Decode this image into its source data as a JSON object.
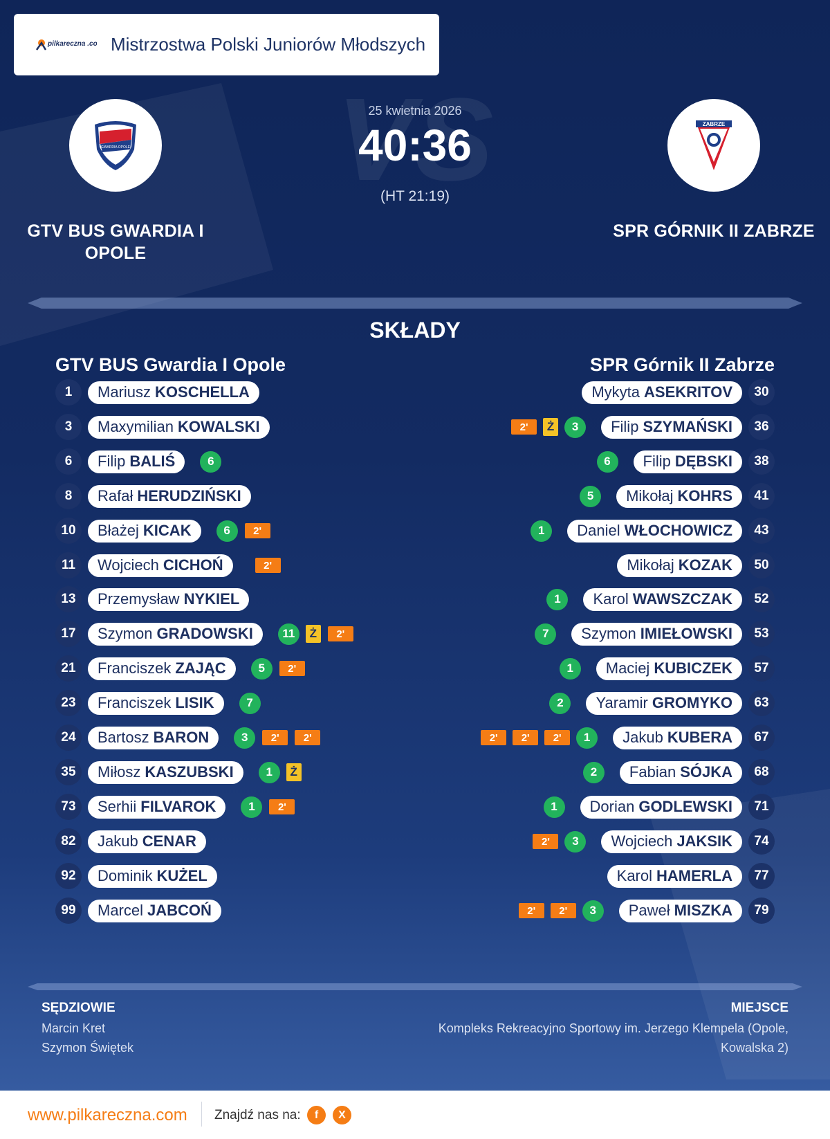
{
  "header": {
    "brand_logo_text": "pilkareczna .com",
    "competition": "Mistrzostwa Polski Juniorów Młodszych"
  },
  "match": {
    "date": "25 kwietnia 2026",
    "score": "40:36",
    "halftime": "(HT 21:19)",
    "vs_watermark": "VS",
    "home": {
      "name": "GTV BUS GWARDIA I OPOLE",
      "crest_text": "GWARDIA OPOLE"
    },
    "away": {
      "name": "SPR GÓRNIK II ZABRZE",
      "crest_text": "ZABRZE"
    }
  },
  "lineups": {
    "title": "SKŁADY",
    "home_title": "GTV BUS Gwardia I Opole",
    "away_title": "SPR Górnik II Zabrze",
    "home": [
      {
        "number": "1",
        "first": "Mariusz",
        "last": "KOSCHELLA",
        "goals": "",
        "yellow": "",
        "suspensions": []
      },
      {
        "number": "3",
        "first": "Maxymilian",
        "last": "KOWALSKI",
        "goals": "",
        "yellow": "",
        "suspensions": []
      },
      {
        "number": "6",
        "first": "Filip",
        "last": "BALIŚ",
        "goals": "6",
        "yellow": "",
        "suspensions": []
      },
      {
        "number": "8",
        "first": "Rafał",
        "last": "HERUDZIŃSKI",
        "goals": "",
        "yellow": "",
        "suspensions": []
      },
      {
        "number": "10",
        "first": "Błażej",
        "last": "KICAK",
        "goals": "6",
        "yellow": "",
        "suspensions": [
          "2'"
        ]
      },
      {
        "number": "11",
        "first": "Wojciech",
        "last": "CICHOŃ",
        "goals": "",
        "yellow": "",
        "suspensions": [
          "2'"
        ]
      },
      {
        "number": "13",
        "first": "Przemysław",
        "last": "NYKIEL",
        "goals": "",
        "yellow": "",
        "suspensions": []
      },
      {
        "number": "17",
        "first": "Szymon",
        "last": "GRADOWSKI",
        "goals": "11",
        "yellow": "Ż",
        "suspensions": [
          "2'"
        ]
      },
      {
        "number": "21",
        "first": "Franciszek",
        "last": "ZAJĄC",
        "goals": "5",
        "yellow": "",
        "suspensions": [
          "2'"
        ]
      },
      {
        "number": "23",
        "first": "Franciszek",
        "last": "LISIK",
        "goals": "7",
        "yellow": "",
        "suspensions": []
      },
      {
        "number": "24",
        "first": "Bartosz",
        "last": "BARON",
        "goals": "3",
        "yellow": "",
        "suspensions": [
          "2'",
          "2'"
        ]
      },
      {
        "number": "35",
        "first": "Miłosz",
        "last": "KASZUBSKI",
        "goals": "1",
        "yellow": "Ż",
        "suspensions": []
      },
      {
        "number": "73",
        "first": "Serhii",
        "last": "FILVAROK",
        "goals": "1",
        "yellow": "",
        "suspensions": [
          "2'"
        ]
      },
      {
        "number": "82",
        "first": "Jakub",
        "last": "CENAR",
        "goals": "",
        "yellow": "",
        "suspensions": []
      },
      {
        "number": "92",
        "first": "Dominik",
        "last": "KUŻEL",
        "goals": "",
        "yellow": "",
        "suspensions": []
      },
      {
        "number": "99",
        "first": "Marcel",
        "last": "JABCOŃ",
        "goals": "",
        "yellow": "",
        "suspensions": []
      }
    ],
    "away": [
      {
        "number": "30",
        "first": "Mykyta",
        "last": "ASEKRITOV",
        "goals": "",
        "yellow": "",
        "suspensions": []
      },
      {
        "number": "36",
        "first": "Filip",
        "last": "SZYMAŃSKI",
        "goals": "3",
        "yellow": "Ż",
        "suspensions": [
          "2'"
        ]
      },
      {
        "number": "38",
        "first": "Filip",
        "last": "DĘBSKI",
        "goals": "6",
        "yellow": "",
        "suspensions": []
      },
      {
        "number": "41",
        "first": "Mikołaj",
        "last": "KOHRS",
        "goals": "5",
        "yellow": "",
        "suspensions": []
      },
      {
        "number": "43",
        "first": "Daniel",
        "last": "WŁOCHOWICZ",
        "goals": "1",
        "yellow": "",
        "suspensions": []
      },
      {
        "number": "50",
        "first": "Mikołaj",
        "last": "KOZAK",
        "goals": "",
        "yellow": "",
        "suspensions": []
      },
      {
        "number": "52",
        "first": "Karol",
        "last": "WAWSZCZAK",
        "goals": "1",
        "yellow": "",
        "suspensions": []
      },
      {
        "number": "53",
        "first": "Szymon",
        "last": "IMIEŁOWSKI",
        "goals": "7",
        "yellow": "",
        "suspensions": []
      },
      {
        "number": "57",
        "first": "Maciej",
        "last": "KUBICZEK",
        "goals": "1",
        "yellow": "",
        "suspensions": []
      },
      {
        "number": "63",
        "first": "Yaramir",
        "last": "GROMYKO",
        "goals": "2",
        "yellow": "",
        "suspensions": []
      },
      {
        "number": "67",
        "first": "Jakub",
        "last": "KUBERA",
        "goals": "1",
        "yellow": "",
        "suspensions": [
          "2'",
          "2'",
          "2'"
        ]
      },
      {
        "number": "68",
        "first": "Fabian",
        "last": "SÓJKA",
        "goals": "2",
        "yellow": "",
        "suspensions": []
      },
      {
        "number": "71",
        "first": "Dorian",
        "last": "GODLEWSKI",
        "goals": "1",
        "yellow": "",
        "suspensions": []
      },
      {
        "number": "74",
        "first": "Wojciech",
        "last": "JAKSIK",
        "goals": "3",
        "yellow": "",
        "suspensions": [
          "2'"
        ]
      },
      {
        "number": "77",
        "first": "Karol",
        "last": "HAMERLA",
        "goals": "",
        "yellow": "",
        "suspensions": []
      },
      {
        "number": "79",
        "first": "Paweł",
        "last": "MISZKA",
        "goals": "3",
        "yellow": "",
        "suspensions": [
          "2'",
          "2'"
        ]
      }
    ]
  },
  "officials": {
    "label": "SĘDZIOWIE",
    "referees": [
      "Marcin Kret",
      "Szymon Świętek"
    ]
  },
  "venue": {
    "label": "MIEJSCE",
    "text": "Kompleks Rekreacyjno Sportowy im. Jerzego Klempela (Opole, Kowalska 2)"
  },
  "footer": {
    "url": "www.pilkareczna.com",
    "find_us": "Znajdź nas na:",
    "social": [
      {
        "icon": "facebook-icon",
        "glyph": "f"
      },
      {
        "icon": "x-icon",
        "glyph": "X"
      }
    ]
  },
  "colors": {
    "background": "#132b62",
    "accent_orange": "#f57d15",
    "goal_green": "#22b35c",
    "yellow_card": "#f4c227",
    "text_dark_blue": "#1e3060"
  }
}
